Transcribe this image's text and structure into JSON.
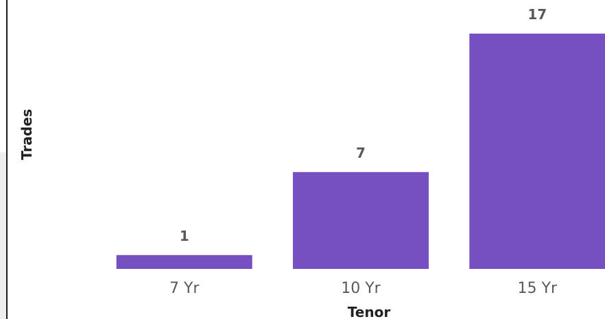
{
  "chart_data": {
    "type": "bar",
    "categories": [
      "7 Yr",
      "10 Yr",
      "15 Yr"
    ],
    "values": [
      1,
      7,
      17
    ],
    "xlabel": "Tenor",
    "ylabel": "Trades",
    "ylim": [
      0,
      17
    ],
    "grid": false,
    "data_labels": true,
    "bar_color": "#7650c1"
  }
}
